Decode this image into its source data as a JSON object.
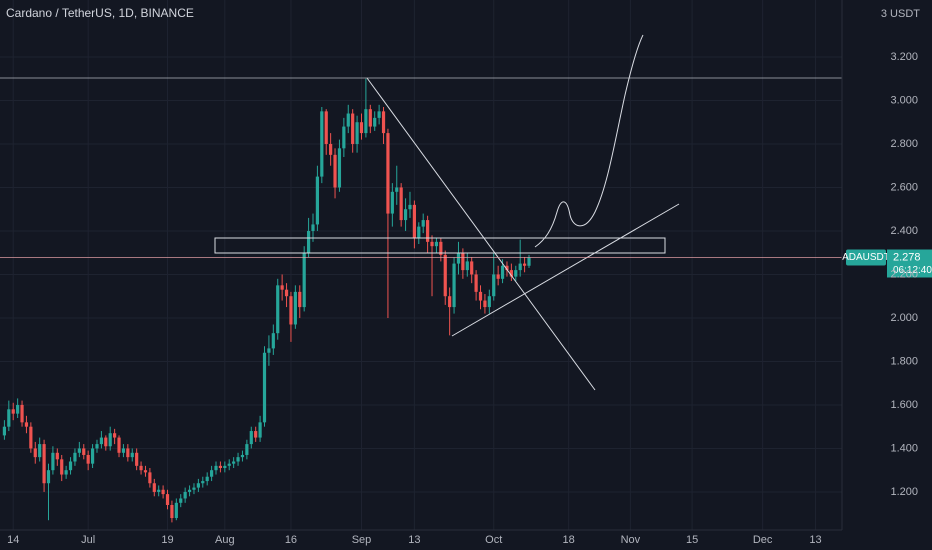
{
  "chart_data": {
    "type": "candlestick",
    "title": "Cardano / TetherUS, 1D, BINANCE",
    "y_unit": "3 USDT",
    "symbol": "ADAUSDT",
    "countdown": "06:12:40",
    "up_color": "#26a69a",
    "down_color": "#ef5350",
    "grid": true,
    "xlim": [
      "Jun 11",
      "Dec 19"
    ],
    "ylim": [
      1.025,
      3.462
    ],
    "yticks": [
      {
        "value": 1.2,
        "label": "1.200"
      },
      {
        "value": 1.4,
        "label": "1.400"
      },
      {
        "value": 1.6,
        "label": "1.600"
      },
      {
        "value": 1.8,
        "label": "1.800"
      },
      {
        "value": 2,
        "label": "2.000"
      },
      {
        "value": 2.2,
        "label": "2.200"
      },
      {
        "value": 2.4,
        "label": "2.400"
      },
      {
        "value": 2.6,
        "label": "2.600"
      },
      {
        "value": 2.8,
        "label": "2.800"
      },
      {
        "value": 3,
        "label": "3.000"
      },
      {
        "value": 3.2,
        "label": "3.200"
      }
    ],
    "xticks": [
      {
        "value": "Jun 14",
        "label": "14"
      },
      {
        "value": "Jul 1",
        "label": "Jul"
      },
      {
        "value": "Jul 19",
        "label": "19"
      },
      {
        "value": "Aug 1",
        "label": "Aug"
      },
      {
        "value": "Aug 16",
        "label": "16"
      },
      {
        "value": "Sep 1",
        "label": "Sep"
      },
      {
        "value": "Sep 13",
        "label": "13"
      },
      {
        "value": "Oct 1",
        "label": "Oct"
      },
      {
        "value": "Oct 18",
        "label": "18"
      },
      {
        "value": "Nov 1",
        "label": "Nov"
      },
      {
        "value": "Nov 15",
        "label": "15"
      },
      {
        "value": "Dec 1",
        "label": "Dec"
      },
      {
        "value": "Dec 13",
        "label": "13"
      }
    ],
    "x": [
      "Jun 12",
      "Jun 13",
      "Jun 14",
      "Jun 15",
      "Jun 16",
      "Jun 17",
      "Jun 18",
      "Jun 19",
      "Jun 20",
      "Jun 21",
      "Jun 22",
      "Jun 23",
      "Jun 24",
      "Jun 25",
      "Jun 26",
      "Jun 27",
      "Jun 28",
      "Jun 29",
      "Jun 30",
      "Jul 1",
      "Jul 2",
      "Jul 3",
      "Jul 4",
      "Jul 5",
      "Jul 6",
      "Jul 7",
      "Jul 8",
      "Jul 9",
      "Jul 10",
      "Jul 11",
      "Jul 12",
      "Jul 13",
      "Jul 14",
      "Jul 15",
      "Jul 16",
      "Jul 17",
      "Jul 18",
      "Jul 19",
      "Jul 20",
      "Jul 21",
      "Jul 22",
      "Jul 23",
      "Jul 24",
      "Jul 25",
      "Jul 26",
      "Jul 27",
      "Jul 28",
      "Jul 29",
      "Jul 30",
      "Jul 31",
      "Aug 1",
      "Aug 2",
      "Aug 3",
      "Aug 4",
      "Aug 5",
      "Aug 6",
      "Aug 7",
      "Aug 8",
      "Aug 9",
      "Aug 10",
      "Aug 11",
      "Aug 12",
      "Aug 13",
      "Aug 14",
      "Aug 15",
      "Aug 16",
      "Aug 17",
      "Aug 18",
      "Aug 19",
      "Aug 20",
      "Aug 21",
      "Aug 22",
      "Aug 23",
      "Aug 24",
      "Aug 25",
      "Aug 26",
      "Aug 27",
      "Aug 28",
      "Aug 29",
      "Aug 30",
      "Aug 31",
      "Sep 1",
      "Sep 2",
      "Sep 3",
      "Sep 4",
      "Sep 5",
      "Sep 6",
      "Sep 7",
      "Sep 8",
      "Sep 9",
      "Sep 10",
      "Sep 11",
      "Sep 12",
      "Sep 13",
      "Sep 14",
      "Sep 15",
      "Sep 16",
      "Sep 17",
      "Sep 18",
      "Sep 19",
      "Sep 20",
      "Sep 21",
      "Sep 22",
      "Sep 23",
      "Sep 24",
      "Sep 25",
      "Sep 26",
      "Sep 27",
      "Sep 28",
      "Sep 29",
      "Sep 30",
      "Oct 1",
      "Oct 2",
      "Oct 3",
      "Oct 4",
      "Oct 5",
      "Oct 6",
      "Oct 7",
      "Oct 8",
      "Oct 9"
    ],
    "open": [
      1.46,
      1.5,
      1.58,
      1.56,
      1.6,
      1.52,
      1.5,
      1.4,
      1.36,
      1.42,
      1.24,
      1.3,
      1.38,
      1.35,
      1.28,
      1.3,
      1.34,
      1.38,
      1.4,
      1.37,
      1.33,
      1.4,
      1.42,
      1.45,
      1.41,
      1.47,
      1.45,
      1.38,
      1.4,
      1.36,
      1.38,
      1.32,
      1.3,
      1.29,
      1.24,
      1.2,
      1.21,
      1.19,
      1.14,
      1.08,
      1.15,
      1.17,
      1.2,
      1.21,
      1.22,
      1.24,
      1.25,
      1.27,
      1.3,
      1.32,
      1.31,
      1.32,
      1.33,
      1.34,
      1.36,
      1.37,
      1.42,
      1.48,
      1.45,
      1.52,
      1.84,
      1.86,
      1.93,
      2.15,
      2.13,
      2.1,
      1.97,
      2.12,
      2.05,
      2.3,
      2.4,
      2.43,
      2.65,
      2.95,
      2.8,
      2.75,
      2.6,
      2.78,
      2.88,
      2.94,
      2.8,
      2.9,
      2.85,
      2.96,
      2.88,
      2.92,
      2.95,
      2.85,
      2.48,
      2.58,
      2.6,
      2.45,
      2.5,
      2.52,
      2.37,
      2.42,
      2.45,
      2.35,
      2.33,
      2.35,
      2.29,
      2.1,
      2.05,
      2.25,
      2.3,
      2.22,
      2.26,
      2.2,
      2.12,
      2.08,
      2.05,
      2.1,
      2.2,
      2.18,
      2.24,
      2.22,
      2.19,
      2.22,
      2.25,
      2.24
    ],
    "high": [
      1.53,
      1.62,
      1.61,
      1.63,
      1.62,
      1.55,
      1.52,
      1.43,
      1.45,
      1.44,
      1.33,
      1.41,
      1.4,
      1.37,
      1.32,
      1.36,
      1.4,
      1.43,
      1.42,
      1.39,
      1.42,
      1.44,
      1.48,
      1.46,
      1.5,
      1.49,
      1.46,
      1.42,
      1.42,
      1.4,
      1.4,
      1.34,
      1.32,
      1.31,
      1.26,
      1.23,
      1.23,
      1.21,
      1.16,
      1.17,
      1.19,
      1.22,
      1.23,
      1.24,
      1.26,
      1.27,
      1.29,
      1.32,
      1.34,
      1.34,
      1.34,
      1.35,
      1.36,
      1.38,
      1.39,
      1.44,
      1.5,
      1.5,
      1.55,
      1.87,
      1.92,
      1.97,
      2.18,
      2.2,
      2.16,
      2.12,
      2.15,
      2.15,
      2.33,
      2.46,
      2.48,
      2.7,
      2.97,
      2.96,
      2.85,
      2.78,
      2.82,
      2.92,
      2.98,
      2.96,
      2.93,
      2.94,
      3.1,
      2.98,
      2.95,
      2.98,
      2.97,
      2.87,
      2.62,
      2.7,
      2.62,
      2.55,
      2.58,
      2.54,
      2.44,
      2.48,
      2.47,
      2.38,
      2.37,
      2.37,
      2.31,
      2.14,
      2.28,
      2.35,
      2.32,
      2.3,
      2.28,
      2.22,
      2.15,
      2.11,
      2.13,
      2.3,
      2.24,
      2.27,
      2.26,
      2.25,
      2.24,
      2.36,
      2.28,
      2.29
    ],
    "low": [
      1.44,
      1.48,
      1.53,
      1.54,
      1.5,
      1.47,
      1.38,
      1.33,
      1.34,
      1.2,
      1.07,
      1.28,
      1.32,
      1.25,
      1.26,
      1.28,
      1.32,
      1.36,
      1.35,
      1.3,
      1.31,
      1.38,
      1.4,
      1.39,
      1.39,
      1.42,
      1.36,
      1.36,
      1.34,
      1.34,
      1.3,
      1.28,
      1.27,
      1.22,
      1.18,
      1.18,
      1.17,
      1.12,
      1.06,
      1.07,
      1.13,
      1.15,
      1.18,
      1.19,
      1.2,
      1.22,
      1.23,
      1.25,
      1.28,
      1.29,
      1.29,
      1.3,
      1.31,
      1.32,
      1.34,
      1.35,
      1.4,
      1.43,
      1.43,
      1.5,
      1.78,
      1.83,
      1.9,
      2.08,
      2.05,
      1.89,
      1.95,
      2.0,
      2.03,
      2.28,
      2.35,
      2.4,
      2.62,
      2.75,
      2.7,
      2.55,
      2.58,
      2.74,
      2.85,
      2.76,
      2.76,
      2.82,
      2.83,
      2.85,
      2.86,
      2.89,
      2.8,
      2.0,
      2.42,
      2.52,
      2.42,
      2.4,
      2.46,
      2.32,
      2.34,
      2.39,
      2.3,
      2.1,
      2.3,
      2.26,
      2.06,
      1.92,
      2.02,
      2.2,
      2.18,
      2.19,
      2.16,
      2.08,
      2.04,
      2.02,
      2.02,
      2.08,
      2.15,
      2.16,
      2.19,
      2.17,
      2.17,
      2.19,
      2.21,
      2.23
    ],
    "close": [
      1.5,
      1.58,
      1.56,
      1.6,
      1.52,
      1.5,
      1.4,
      1.36,
      1.42,
      1.24,
      1.3,
      1.38,
      1.35,
      1.28,
      1.3,
      1.34,
      1.38,
      1.4,
      1.37,
      1.33,
      1.4,
      1.42,
      1.45,
      1.41,
      1.47,
      1.45,
      1.38,
      1.4,
      1.36,
      1.38,
      1.32,
      1.3,
      1.29,
      1.24,
      1.2,
      1.21,
      1.19,
      1.14,
      1.08,
      1.15,
      1.17,
      1.2,
      1.21,
      1.22,
      1.24,
      1.25,
      1.27,
      1.3,
      1.32,
      1.31,
      1.32,
      1.33,
      1.34,
      1.36,
      1.37,
      1.42,
      1.48,
      1.45,
      1.52,
      1.84,
      1.86,
      1.93,
      2.15,
      2.13,
      2.1,
      1.97,
      2.12,
      2.05,
      2.3,
      2.4,
      2.43,
      2.65,
      2.95,
      2.8,
      2.75,
      2.6,
      2.78,
      2.88,
      2.94,
      2.8,
      2.9,
      2.85,
      2.96,
      2.88,
      2.92,
      2.95,
      2.85,
      2.48,
      2.58,
      2.6,
      2.45,
      2.5,
      2.52,
      2.37,
      2.42,
      2.45,
      2.35,
      2.33,
      2.35,
      2.29,
      2.1,
      2.05,
      2.25,
      2.3,
      2.22,
      2.26,
      2.2,
      2.12,
      2.08,
      2.05,
      2.1,
      2.2,
      2.18,
      2.24,
      2.22,
      2.19,
      2.22,
      2.25,
      2.24,
      2.278
    ]
  }
}
